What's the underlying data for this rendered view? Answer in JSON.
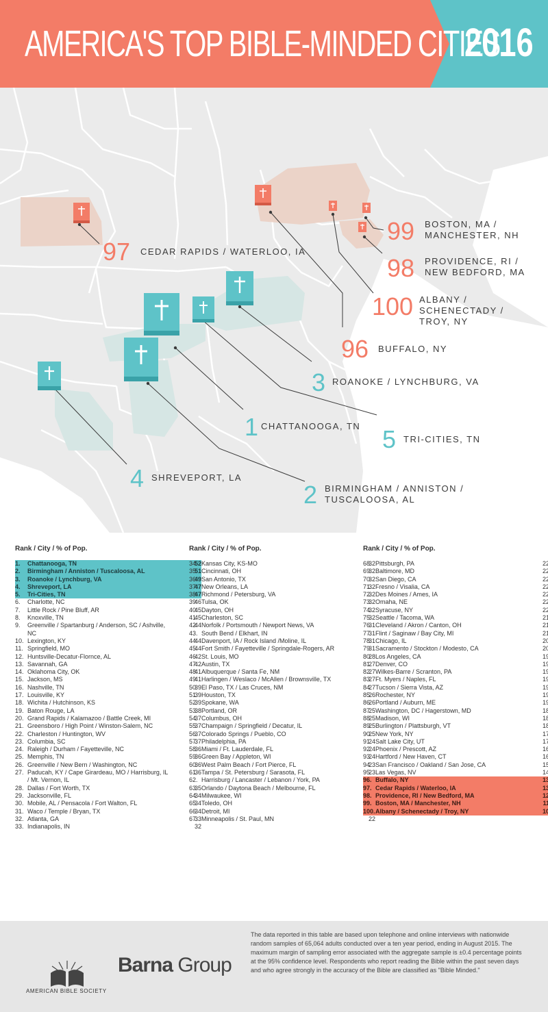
{
  "header": {
    "title": "AMERICA'S TOP BIBLE-MINDED CITIES",
    "year": "2016",
    "colors": {
      "coral": "#f37c67",
      "teal": "#5ec3c8"
    }
  },
  "map_labels": {
    "l97": {
      "num": "97",
      "city": "CEDAR RAPIDS / WATERLOO, IA"
    },
    "l99": {
      "num": "99",
      "line1": "BOSTON, MA /",
      "line2": "MANCHESTER, NH"
    },
    "l98": {
      "num": "98",
      "line1": "PROVIDENCE, RI /",
      "line2": "NEW BEDFORD, MA"
    },
    "l100": {
      "num": "100",
      "line1": "ALBANY /",
      "line2": "SCHENECTADY /",
      "line3": "TROY, NY"
    },
    "l96": {
      "num": "96",
      "city": "BUFFALO, NY"
    },
    "l3": {
      "num": "3",
      "city": "ROANOKE / LYNCHBURG, VA"
    },
    "l1": {
      "num": "1",
      "city": "CHATTANOOGA, TN"
    },
    "l5": {
      "num": "5",
      "city": "TRI-CITIES, TN"
    },
    "l4": {
      "num": "4",
      "city": "SHREVEPORT, LA"
    },
    "l2": {
      "num": "2",
      "line1": "BIRMINGHAM / ANNISTON /",
      "line2": "TUSCALOOSA, AL"
    }
  },
  "table_header": "Rank  /  City  /  % of Pop.",
  "chart_data": {
    "type": "table",
    "columns": [
      "Rank",
      "City",
      "% of Pop."
    ],
    "rows": [
      [
        "1.",
        "Chattanooga, TN",
        52
      ],
      [
        "2.",
        "Birmingham / Anniston / Tuscaloosa, AL",
        51
      ],
      [
        "3.",
        "Roanoke / Lynchburg, VA",
        49
      ],
      [
        "4.",
        "Shreveport, LA",
        47
      ],
      [
        "5.",
        "Tri-Cities, TN",
        47
      ],
      [
        "6.",
        "Charlotte, NC",
        46
      ],
      [
        "7.",
        "Little Rock / Pine Bluff, AR",
        45
      ],
      [
        "8.",
        "Knoxville, TN",
        45
      ],
      [
        "9.",
        "Greenville / Spartanburg / Anderson, SC / Ashville, NC",
        44
      ],
      [
        "10.",
        "Lexington, KY",
        44
      ],
      [
        "11.",
        "Springfield, MO",
        44
      ],
      [
        "12.",
        "Huntsville-Decatur-Flornce, AL",
        42
      ],
      [
        "13.",
        "Savannah, GA",
        42
      ],
      [
        "14.",
        "Oklahoma City, OK",
        41
      ],
      [
        "15.",
        "Jackson, MS",
        41
      ],
      [
        "16.",
        "Nashville, TN",
        39
      ],
      [
        "17.",
        "Louisville, KY",
        39
      ],
      [
        "18.",
        "Wichita / Hutchinson, KS",
        39
      ],
      [
        "19.",
        "Baton Rouge, LA",
        38
      ],
      [
        "20.",
        "Grand Rapids / Kalamazoo / Battle Creek, MI",
        37
      ],
      [
        "21.",
        "Greensboro / High Point / Winston-Salem, NC",
        37
      ],
      [
        "22.",
        "Charleston / Huntington, WV",
        37
      ],
      [
        "23.",
        "Columbia, SC",
        37
      ],
      [
        "24.",
        "Raleigh / Durham / Fayetteville, NC",
        36
      ],
      [
        "25.",
        "Memphis, TN",
        36
      ],
      [
        "26.",
        "Greenville / New Bern / Washington, NC",
        36
      ],
      [
        "27.",
        "Paducah, KY / Cape Girardeau, MO / Harrisburg, IL / Mt. Vernon, IL",
        36
      ],
      [
        "28.",
        "Dallas / Fort Worth, TX",
        35
      ],
      [
        "29.",
        "Jacksonville, FL",
        34
      ],
      [
        "30.",
        "Mobile, AL / Pensacola / Fort Walton, FL",
        34
      ],
      [
        "31.",
        "Waco / Temple / Bryan, TX",
        34
      ],
      [
        "32.",
        "Atlanta, GA",
        33
      ],
      [
        "33.",
        "Indianapolis, IN",
        32
      ],
      [
        "34.",
        "Kansas City, KS-MO",
        32
      ],
      [
        "35.",
        "Cincinnati, OH",
        32
      ],
      [
        "36.",
        "San Antonio, TX",
        32
      ],
      [
        "37.",
        "New Orleans, LA",
        32
      ],
      [
        "38.",
        "Richmond / Petersburg, VA",
        32
      ],
      [
        "39.",
        "Tulsa, OK",
        32
      ],
      [
        "40.",
        "Dayton, OH",
        32
      ],
      [
        "41.",
        "Charleston, SC",
        32
      ],
      [
        "42.",
        "Norfolk / Portsmouth / Newport News, VA",
        31
      ],
      [
        "43.",
        "South Bend / Elkhart,  IN",
        31
      ],
      [
        "44.",
        "Davenport, IA / Rock Island /Moline, IL",
        31
      ],
      [
        "45.",
        "Fort Smith / Fayetteville / Springdale-Rogers, AR",
        31
      ],
      [
        "46.",
        "St. Louis, MO",
        28
      ],
      [
        "47.",
        "Austin, TX",
        27
      ],
      [
        "48.",
        "Albuquerque / Santa Fe, NM",
        27
      ],
      [
        "49.",
        "Harlingen / Weslaco / McAllen / Brownsville, TX",
        27
      ],
      [
        "50.",
        "El Paso, TX / Las Cruces, NM",
        27
      ],
      [
        "51.",
        "Houston, TX",
        26
      ],
      [
        "52.",
        "Spokane, WA",
        26
      ],
      [
        "53.",
        "Portland, OR",
        25
      ],
      [
        "54.",
        "Columbus, OH",
        25
      ],
      [
        "55.",
        "Champaign / Springfield / Decatur, IL",
        25
      ],
      [
        "56.",
        "Colorado Springs / Pueblo, CO",
        25
      ],
      [
        "57.",
        "Philadelphia, PA",
        24
      ],
      [
        "58.",
        "Miami / Ft. Lauderdale, FL",
        24
      ],
      [
        "59.",
        "Green Bay / Appleton, WI",
        24
      ],
      [
        "60.",
        "West Palm Beach / Fort Pierce, FL",
        23
      ],
      [
        "61.",
        "Tampa / St. Petersburg / Sarasota, FL",
        23
      ],
      [
        "62.",
        "Harrisburg / Lancaster / Lebanon / York, PA",
        23
      ],
      [
        "63.",
        "Orlando / Daytona Beach / Melbourne, FL",
        23
      ],
      [
        "64.",
        "Milwaukee, WI",
        23
      ],
      [
        "65.",
        "Toledo, OH",
        23
      ],
      [
        "66.",
        "Detroit, MI",
        22
      ],
      [
        "67.",
        "Minneapolis / St. Paul, MN",
        22
      ],
      [
        "68.",
        "Pittsburgh, PA",
        22
      ],
      [
        "69.",
        "Baltimore, MD",
        22
      ],
      [
        "70.",
        "San Diego, CA",
        22
      ],
      [
        "71.",
        "Fresno / Visalia, CA",
        22
      ],
      [
        "72.",
        "Des Moines / Ames, IA",
        22
      ],
      [
        "73.",
        "Omaha, NE",
        22
      ],
      [
        "74.",
        "Syracuse, NY",
        22
      ],
      [
        "75.",
        "Seattle / Tacoma, WA",
        21
      ],
      [
        "76.",
        "Cleveland / Akron / Canton, OH",
        21
      ],
      [
        "77.",
        "Flint / Saginaw / Bay City, MI",
        21
      ],
      [
        "78.",
        "Chicago, IL",
        20
      ],
      [
        "79.",
        "Sacramento / Stockton / Modesto, CA",
        20
      ],
      [
        "80.",
        "Los Angeles, CA",
        19
      ],
      [
        "81.",
        "Denver, CO",
        19
      ],
      [
        "82.",
        "Wilkes-Barre / Scranton, PA",
        19
      ],
      [
        "83.",
        "Ft. Myers / Naples, FL",
        19
      ],
      [
        "84.",
        "Tucson / Sierra Vista, AZ",
        19
      ],
      [
        "85.",
        "Rochester, NY",
        19
      ],
      [
        "86.",
        "Portland / Auburn, ME",
        19
      ],
      [
        "87.",
        "Washington, DC / Hagerstown, MD",
        18
      ],
      [
        "88.",
        "Madison, WI",
        18
      ],
      [
        "89.",
        "Burlington / Plattsburgh, VT",
        18
      ],
      [
        "90.",
        "New York, NY",
        17
      ],
      [
        "91.",
        "Salt Lake City, UT",
        17
      ],
      [
        "92.",
        "Phoenix / Prescott, AZ",
        16
      ],
      [
        "93.",
        "Hartford / New Haven, CT",
        16
      ],
      [
        "94.",
        "San Francisco / Oakland / San Jose, CA",
        15
      ],
      [
        "95.",
        "Las Vegas, NV",
        14
      ],
      [
        "96.",
        "Buffalo, NY",
        13
      ],
      [
        "97.",
        "Cedar Rapids / Waterloo, IA",
        13
      ],
      [
        "98.",
        "Providence, RI / New Bedford, MA",
        12
      ],
      [
        "99.",
        "Boston, MA / Manchester, NH",
        11
      ],
      [
        "100.",
        "Albany / Schenectady / Troy, NY",
        10
      ]
    ]
  },
  "footer": {
    "abs_name": "AMERICAN BIBLE SOCIETY",
    "barna_bold": "Barna",
    "barna_rest": " Group",
    "note": "The data reported in this table are based upon telephone and online interviews with nationwide random samples of 65,064 adults conducted over a ten year period, ending in August 2015. The maximum margin of sampling error associated with the aggregate sample is ±0.4 percentage points at the 95% confidence level. Respondents who report reading the Bible within the past seven days and who agree strongly in the accuracy of the Bible are classified as \"Bible Minded.\""
  }
}
